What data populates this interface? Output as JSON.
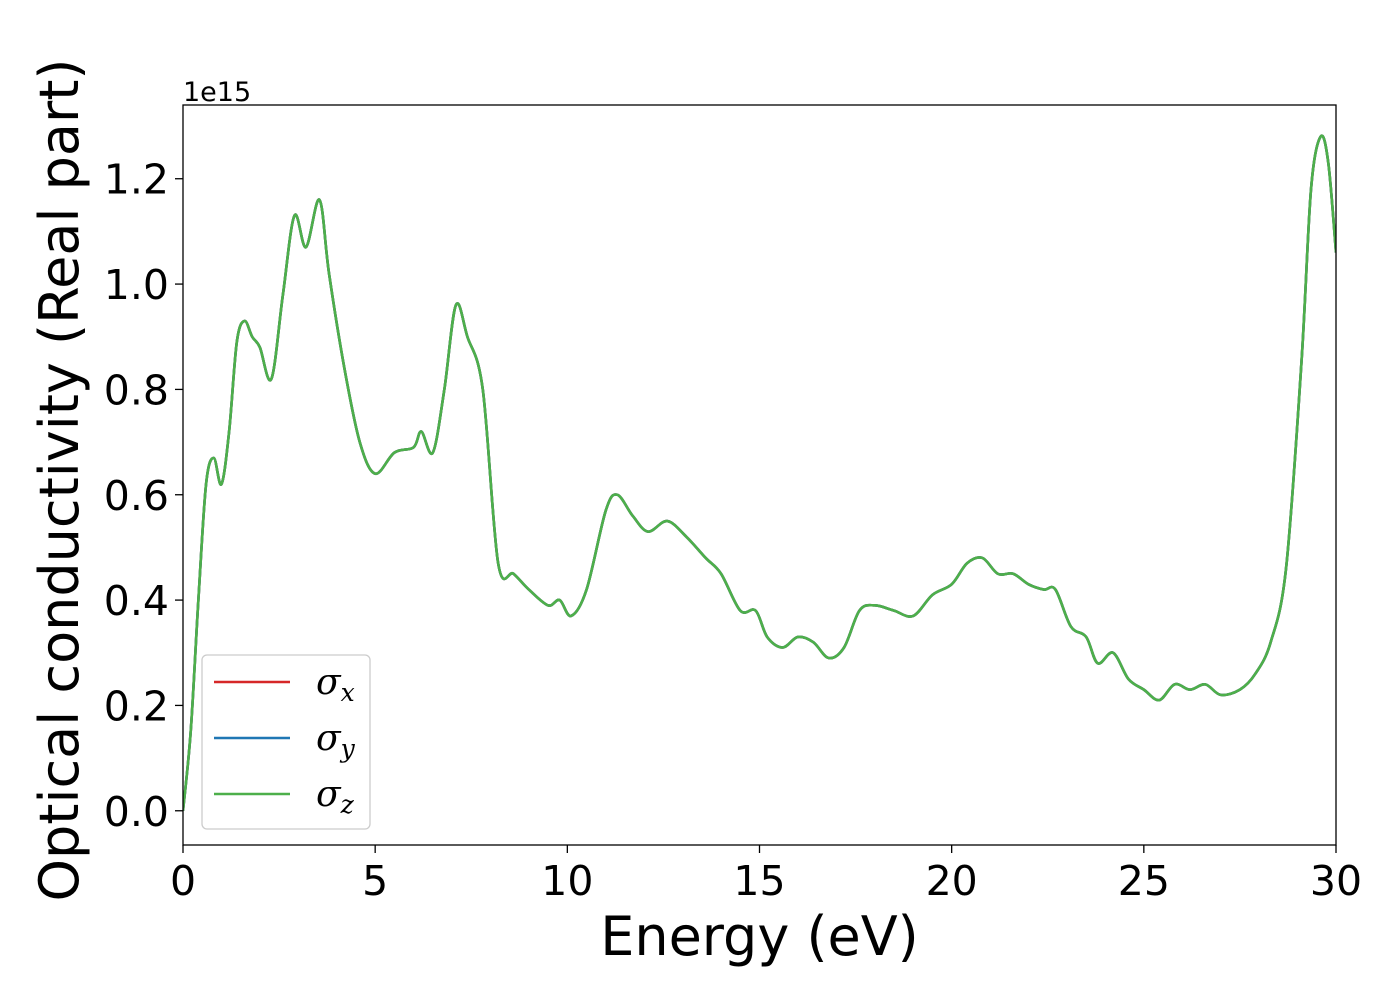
{
  "chart_data": {
    "type": "line",
    "xlabel": "Energy (eV)",
    "ylabel": "Optical conductivity (Real part)",
    "y_offset_label": "1e15",
    "xlim": [
      0,
      30
    ],
    "ylim": [
      -0.065,
      1.34
    ],
    "x_ticks": [
      0,
      5,
      10,
      15,
      20,
      25,
      30
    ],
    "x_tick_labels": [
      "0",
      "5",
      "10",
      "15",
      "20",
      "25",
      "30"
    ],
    "y_ticks": [
      0.0,
      0.2,
      0.4,
      0.6,
      0.8,
      1.0,
      1.2
    ],
    "y_tick_labels": [
      "0.0",
      "0.2",
      "0.4",
      "0.6",
      "0.8",
      "1.0",
      "1.2"
    ],
    "grid": false,
    "legend_position": "lower-left",
    "x": [
      0,
      0.2,
      0.4,
      0.6,
      0.8,
      1.0,
      1.2,
      1.4,
      1.6,
      1.8,
      2.0,
      2.3,
      2.6,
      2.9,
      3.2,
      3.55,
      3.8,
      4.2,
      4.6,
      5.0,
      5.5,
      6.0,
      6.2,
      6.5,
      6.8,
      7.1,
      7.4,
      7.8,
      8.2,
      8.6,
      9.0,
      9.5,
      9.8,
      10.1,
      10.5,
      11.0,
      11.3,
      11.7,
      12.1,
      12.6,
      13.1,
      13.6,
      14.0,
      14.5,
      14.9,
      15.2,
      15.6,
      16.0,
      16.4,
      16.8,
      17.2,
      17.6,
      18.0,
      18.5,
      19.0,
      19.5,
      20.0,
      20.4,
      20.8,
      21.2,
      21.6,
      22.0,
      22.4,
      22.7,
      23.1,
      23.5,
      23.8,
      24.2,
      24.6,
      25.0,
      25.4,
      25.8,
      26.2,
      26.6,
      27.0,
      27.5,
      27.9,
      28.3,
      28.7,
      29.1,
      29.35,
      29.6,
      29.8,
      30.0
    ],
    "series": [
      {
        "name": "σx",
        "color": "#d62728",
        "values": [
          0.0,
          0.15,
          0.4,
          0.62,
          0.67,
          0.62,
          0.72,
          0.89,
          0.93,
          0.9,
          0.88,
          0.82,
          0.98,
          1.13,
          1.07,
          1.16,
          1.02,
          0.84,
          0.7,
          0.64,
          0.68,
          0.69,
          0.72,
          0.68,
          0.8,
          0.96,
          0.9,
          0.8,
          0.47,
          0.45,
          0.42,
          0.39,
          0.4,
          0.37,
          0.42,
          0.57,
          0.6,
          0.56,
          0.53,
          0.55,
          0.52,
          0.48,
          0.45,
          0.38,
          0.38,
          0.33,
          0.31,
          0.33,
          0.32,
          0.29,
          0.31,
          0.38,
          0.39,
          0.38,
          0.37,
          0.41,
          0.43,
          0.47,
          0.48,
          0.45,
          0.45,
          0.43,
          0.42,
          0.42,
          0.35,
          0.33,
          0.28,
          0.3,
          0.25,
          0.23,
          0.21,
          0.24,
          0.23,
          0.24,
          0.22,
          0.23,
          0.26,
          0.32,
          0.46,
          0.85,
          1.18,
          1.28,
          1.23,
          1.06
        ]
      },
      {
        "name": "σy",
        "color": "#1f77b4",
        "values": [
          0.0,
          0.15,
          0.4,
          0.62,
          0.67,
          0.62,
          0.72,
          0.89,
          0.93,
          0.9,
          0.88,
          0.82,
          0.98,
          1.13,
          1.07,
          1.16,
          1.02,
          0.84,
          0.7,
          0.64,
          0.68,
          0.69,
          0.72,
          0.68,
          0.8,
          0.96,
          0.9,
          0.8,
          0.47,
          0.45,
          0.42,
          0.39,
          0.4,
          0.37,
          0.42,
          0.57,
          0.6,
          0.56,
          0.53,
          0.55,
          0.52,
          0.48,
          0.45,
          0.38,
          0.38,
          0.33,
          0.31,
          0.33,
          0.32,
          0.29,
          0.31,
          0.38,
          0.39,
          0.38,
          0.37,
          0.41,
          0.43,
          0.47,
          0.48,
          0.45,
          0.45,
          0.43,
          0.42,
          0.42,
          0.35,
          0.33,
          0.28,
          0.3,
          0.25,
          0.23,
          0.21,
          0.24,
          0.23,
          0.24,
          0.22,
          0.23,
          0.26,
          0.32,
          0.46,
          0.85,
          1.18,
          1.28,
          1.23,
          1.06
        ]
      },
      {
        "name": "σz",
        "color": "#4daf4a",
        "values": [
          0.0,
          0.15,
          0.4,
          0.62,
          0.67,
          0.62,
          0.72,
          0.89,
          0.93,
          0.9,
          0.88,
          0.82,
          0.98,
          1.13,
          1.07,
          1.16,
          1.02,
          0.84,
          0.7,
          0.64,
          0.68,
          0.69,
          0.72,
          0.68,
          0.8,
          0.96,
          0.9,
          0.8,
          0.47,
          0.45,
          0.42,
          0.39,
          0.4,
          0.37,
          0.42,
          0.57,
          0.6,
          0.56,
          0.53,
          0.55,
          0.52,
          0.48,
          0.45,
          0.38,
          0.38,
          0.33,
          0.31,
          0.33,
          0.32,
          0.29,
          0.31,
          0.38,
          0.39,
          0.38,
          0.37,
          0.41,
          0.43,
          0.47,
          0.48,
          0.45,
          0.45,
          0.43,
          0.42,
          0.42,
          0.35,
          0.33,
          0.28,
          0.3,
          0.25,
          0.23,
          0.21,
          0.24,
          0.23,
          0.24,
          0.22,
          0.23,
          0.26,
          0.32,
          0.46,
          0.85,
          1.18,
          1.28,
          1.23,
          1.06
        ]
      }
    ],
    "legend": [
      {
        "symbol": "σ",
        "sub": "x",
        "color": "#d62728"
      },
      {
        "symbol": "σ",
        "sub": "y",
        "color": "#1f77b4"
      },
      {
        "symbol": "σ",
        "sub": "z",
        "color": "#4daf4a"
      }
    ]
  }
}
